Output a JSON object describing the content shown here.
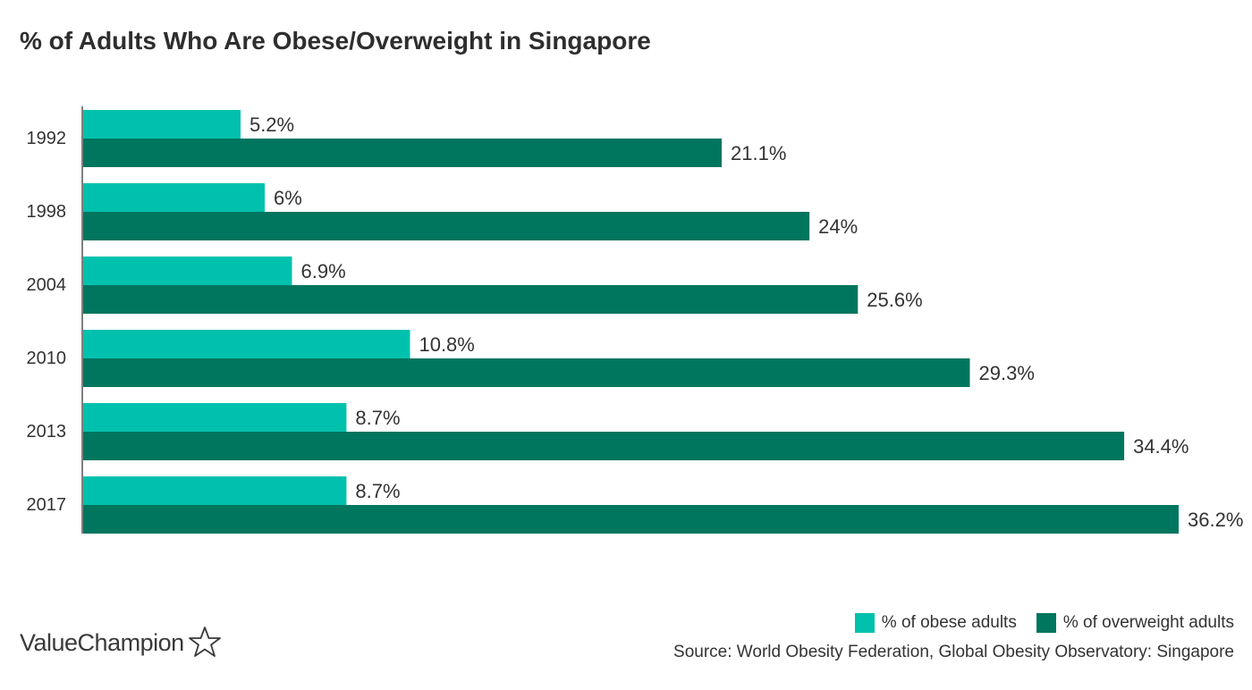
{
  "title": "% of Adults Who Are Obese/Overweight in Singapore",
  "brand": {
    "name": "ValueChampion",
    "icon": "star-outline-icon"
  },
  "source": "Source: World Obesity Federation, Global Obesity Observatory: Singapore",
  "colors": {
    "obese": "#00c1ad",
    "overweight": "#00765f"
  },
  "chart_data": {
    "type": "bar",
    "orientation": "horizontal",
    "title": "% of Adults Who Are Obese/Overweight in Singapore",
    "categories": [
      "1992",
      "1998",
      "2004",
      "2010",
      "2013",
      "2017"
    ],
    "series": [
      {
        "name": "% of obese adults",
        "color": "#00c1ad",
        "values": [
          5.2,
          6,
          6.9,
          10.8,
          8.7,
          8.7
        ],
        "labels": [
          "5.2%",
          "6%",
          "6.9%",
          "10.8%",
          "8.7%",
          "8.7%"
        ]
      },
      {
        "name": "% of overweight adults",
        "color": "#00765f",
        "values": [
          21.1,
          24,
          25.6,
          29.3,
          34.4,
          36.2
        ],
        "labels": [
          "21.1%",
          "24%",
          "25.6%",
          "29.3%",
          "34.4%",
          "36.2%"
        ]
      }
    ],
    "xlim": [
      0,
      36.2
    ],
    "legend": "bottom-right",
    "grid": false
  }
}
